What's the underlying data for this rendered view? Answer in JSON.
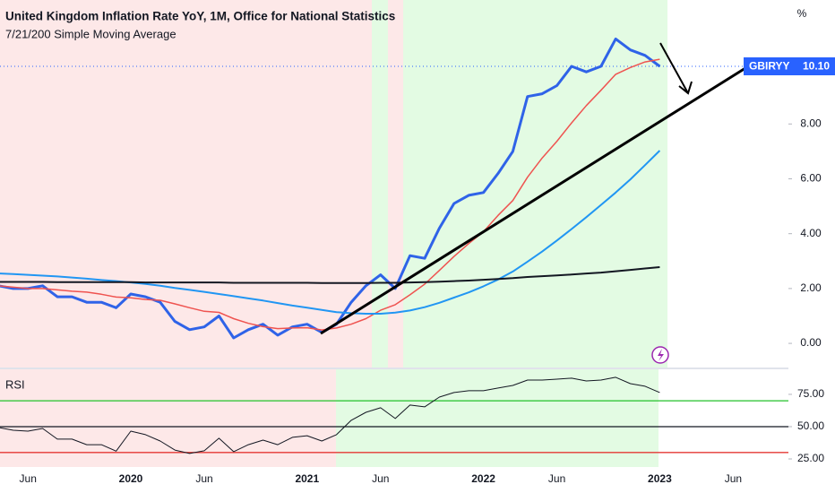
{
  "chart_data": [
    {
      "type": "line",
      "title": "United Kingdom Inflation Rate YoY, 1M, Office for National Statistics",
      "subtitle": "7/21/200 Simple Moving Average",
      "unit": "%",
      "categories": [
        null,
        null,
        "Jun",
        null,
        null,
        null,
        null,
        null,
        null,
        "2020",
        null,
        null,
        null,
        null,
        "Jun",
        null,
        null,
        null,
        null,
        null,
        null,
        "2021",
        null,
        null,
        null,
        null,
        "Jun",
        null,
        null,
        null,
        null,
        null,
        null,
        "2022",
        null,
        null,
        null,
        null,
        "Jun",
        null,
        null,
        null,
        null,
        null,
        null,
        "2023",
        null,
        null,
        null,
        null,
        "Jun"
      ],
      "ylim": [
        -0.88,
        12.52
      ],
      "yticks": [
        {
          "value": 0,
          "label": "0.00"
        },
        {
          "value": 2,
          "label": "2.00"
        },
        {
          "value": 4,
          "label": "4.00"
        },
        {
          "value": 6,
          "label": "6.00"
        },
        {
          "value": 8,
          "label": "8.00"
        }
      ],
      "grid": false,
      "series": [
        {
          "name": "GBIRYY",
          "color": "#2f63e8",
          "width": 3,
          "values": [
            2.1,
            2.0,
            2.0,
            2.1,
            1.7,
            1.7,
            1.5,
            1.5,
            1.3,
            1.8,
            1.7,
            1.5,
            0.8,
            0.5,
            0.6,
            1.0,
            0.2,
            0.5,
            0.7,
            0.3,
            0.6,
            0.7,
            0.4,
            0.7,
            1.5,
            2.1,
            2.5,
            2.0,
            3.2,
            3.1,
            4.2,
            5.1,
            5.4,
            5.5,
            6.2,
            7.0,
            9.0,
            9.1,
            9.4,
            10.1,
            9.9,
            10.1,
            11.1,
            10.7,
            10.5,
            10.1,
            null,
            null,
            null,
            null,
            null
          ],
          "value_labels": [
            null,
            null,
            null,
            null,
            null,
            null,
            null,
            null,
            null,
            null,
            null,
            null,
            null,
            null,
            null,
            null,
            null,
            null,
            null,
            null,
            null,
            null,
            null,
            null,
            null,
            null,
            null,
            null,
            null,
            null,
            null,
            null,
            null,
            null,
            null,
            null,
            null,
            null,
            null,
            null,
            null,
            null,
            null,
            null,
            null,
            "10.10",
            null,
            null,
            null,
            null,
            null
          ]
        },
        {
          "color": "#ef5350",
          "width": 1.5,
          "values": [
            2.1,
            2.05,
            2.0,
            2.0,
            1.95,
            1.9,
            1.87,
            1.79,
            1.69,
            1.66,
            1.6,
            1.57,
            1.44,
            1.3,
            1.17,
            1.13,
            0.9,
            0.73,
            0.61,
            0.54,
            0.56,
            0.57,
            0.49,
            0.56,
            0.7,
            0.9,
            1.21,
            1.41,
            1.77,
            2.16,
            2.66,
            3.17,
            3.64,
            4.07,
            4.67,
            5.21,
            6.06,
            6.76,
            7.37,
            8.04,
            8.67,
            9.23,
            9.81,
            10.06,
            10.26,
            10.36,
            null,
            null,
            null,
            null,
            null
          ]
        },
        {
          "color": "#2196f3",
          "width": 2,
          "values": [
            2.55,
            2.53,
            2.5,
            2.47,
            2.44,
            2.4,
            2.36,
            2.31,
            2.27,
            2.22,
            2.17,
            2.1,
            2.02,
            1.95,
            1.88,
            1.8,
            1.72,
            1.64,
            1.56,
            1.47,
            1.38,
            1.3,
            1.22,
            1.14,
            1.1,
            1.08,
            1.08,
            1.12,
            1.2,
            1.32,
            1.48,
            1.67,
            1.86,
            2.08,
            2.33,
            2.62,
            2.98,
            3.35,
            3.75,
            4.17,
            4.6,
            5.05,
            5.5,
            5.98,
            6.5,
            7.03,
            null,
            null,
            null,
            null,
            null
          ]
        },
        {
          "color": "#131722",
          "width": 2,
          "values": [
            2.24,
            2.24,
            2.24,
            2.24,
            2.23,
            2.23,
            2.23,
            2.23,
            2.23,
            2.23,
            2.22,
            2.22,
            2.22,
            2.22,
            2.22,
            2.22,
            2.21,
            2.21,
            2.21,
            2.21,
            2.21,
            2.21,
            2.2,
            2.2,
            2.2,
            2.2,
            2.21,
            2.21,
            2.22,
            2.23,
            2.25,
            2.27,
            2.29,
            2.32,
            2.35,
            2.38,
            2.42,
            2.45,
            2.48,
            2.51,
            2.55,
            2.58,
            2.63,
            2.68,
            2.73,
            2.78,
            null,
            null,
            null,
            null,
            null
          ]
        }
      ]
    },
    {
      "type": "line",
      "title": "RSI",
      "ylim": [
        18.75,
        94.4
      ],
      "yticks": [
        {
          "value": 25,
          "label": "25.00"
        },
        {
          "value": 50,
          "label": "50.00"
        },
        {
          "value": 75,
          "label": "75.00"
        }
      ],
      "levels": [
        70,
        50,
        30
      ],
      "level_colors": [
        "#22c22a",
        "#131722",
        "#e53935"
      ],
      "series": [
        {
          "color": "#131722",
          "width": 1,
          "values": [
            49.3,
            47.2,
            46.5,
            48.6,
            40.3,
            40.3,
            36,
            36,
            31,
            46.5,
            43.8,
            38.9,
            31.9,
            29.2,
            31.3,
            41,
            30.6,
            36,
            39.6,
            36,
            41.7,
            43,
            38.9,
            43.8,
            54.9,
            61.1,
            64.6,
            56.3,
            66.7,
            65.3,
            72.9,
            76.4,
            77.8,
            77.8,
            79.9,
            81.9,
            86.1,
            86.1,
            86.8,
            87.5,
            85.4,
            86.1,
            88.2,
            83.3,
            81.3,
            76.4,
            null,
            null,
            null,
            null,
            null
          ]
        }
      ]
    }
  ]
}
